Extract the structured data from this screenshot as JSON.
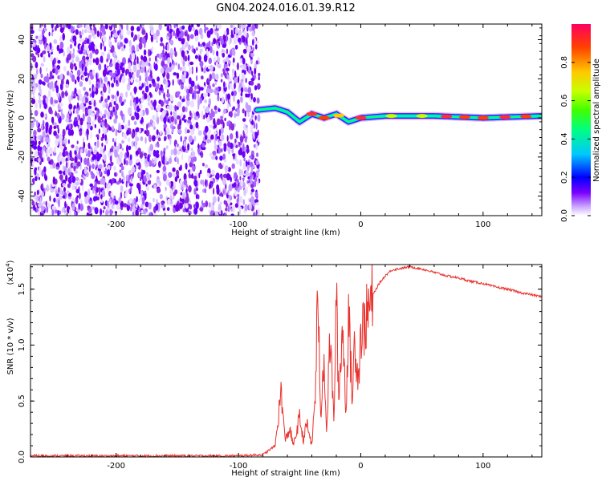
{
  "title": "GN04.2024.016.01.39.R12",
  "chart_data": [
    {
      "type": "heatmap",
      "title": "GN04.2024.016.01.39.R12",
      "xlabel": "Height of straight line (km)",
      "ylabel": "Frequency (Hz)",
      "xlim": [
        -270,
        148
      ],
      "ylim": [
        -50,
        48
      ],
      "xticks": [
        -200,
        -100,
        0,
        100
      ],
      "yticks": [
        -40,
        -20,
        0,
        20,
        40
      ],
      "xtick_labels": [
        "-200",
        "-100",
        "0",
        "100"
      ],
      "ytick_labels": [
        "-40",
        "-20",
        "0",
        "20",
        "40"
      ],
      "noise_region_km": [
        -270,
        -83
      ],
      "signal_band": [
        {
          "x": -85,
          "f": 4
        },
        {
          "x": -70,
          "f": 5
        },
        {
          "x": -60,
          "f": 3
        },
        {
          "x": -50,
          "f": -2
        },
        {
          "x": -40,
          "f": 2
        },
        {
          "x": -30,
          "f": 0
        },
        {
          "x": -20,
          "f": 2
        },
        {
          "x": -10,
          "f": -2
        },
        {
          "x": 0,
          "f": 0
        },
        {
          "x": 20,
          "f": 1
        },
        {
          "x": 60,
          "f": 1
        },
        {
          "x": 100,
          "f": 0
        },
        {
          "x": 148,
          "f": 1
        }
      ],
      "colorbar": {
        "label": "Normalized spectral amplitude",
        "range": [
          0,
          1
        ],
        "ticks": [
          0.0,
          0.2,
          0.4,
          0.6,
          0.8
        ],
        "tick_labels": [
          "0.0",
          "0.2",
          "0.4",
          "0.6",
          "0.8"
        ],
        "colors": [
          "#ffffff",
          "#c8a0ff",
          "#7a00ff",
          "#0000ff",
          "#00c8ff",
          "#00ff80",
          "#40ff00",
          "#c8ff00",
          "#ffc800",
          "#ff4000",
          "#ff0060"
        ]
      }
    },
    {
      "type": "line",
      "xlabel": "Height of straight line (km)",
      "ylabel": "SNR (10 * v/v)",
      "y_multiplier": "(x10",
      "y_multiplier_exp": "4",
      "y_multiplier_close": ")",
      "xlim": [
        -270,
        148
      ],
      "ylim": [
        0,
        1.72
      ],
      "xticks": [
        -200,
        -100,
        0,
        100
      ],
      "yticks": [
        0.0,
        0.5,
        1.0,
        1.5
      ],
      "xtick_labels": [
        "-200",
        "-100",
        "0",
        "100"
      ],
      "ytick_labels": [
        "0.0",
        "0.5",
        "1.0",
        "1.5"
      ],
      "series": [
        {
          "name": "SNR",
          "color": "#e8322d",
          "x": [
            -270,
            -200,
            -150,
            -100,
            -80,
            -70,
            -65,
            -62,
            -58,
            -55,
            -50,
            -47,
            -44,
            -40,
            -37,
            -35,
            -33,
            -30,
            -28,
            -25,
            -22,
            -20,
            -18,
            -15,
            -12,
            -10,
            -7,
            -5,
            -2,
            0,
            5,
            10,
            15,
            20,
            25,
            30,
            35,
            40,
            45,
            50,
            60,
            70,
            80,
            90,
            100,
            110,
            120,
            130,
            140,
            148
          ],
          "values": [
            0.01,
            0.01,
            0.01,
            0.01,
            0.02,
            0.1,
            0.6,
            0.15,
            0.25,
            0.1,
            0.35,
            0.15,
            0.3,
            0.1,
            0.6,
            1.6,
            0.3,
            0.95,
            0.2,
            1.1,
            0.3,
            1.45,
            0.5,
            1.2,
            0.4,
            1.3,
            0.5,
            1.05,
            0.7,
            1.1,
            1.25,
            1.45,
            1.55,
            1.62,
            1.67,
            1.68,
            1.69,
            1.7,
            1.69,
            1.68,
            1.65,
            1.62,
            1.6,
            1.57,
            1.55,
            1.52,
            1.5,
            1.47,
            1.45,
            1.43
          ]
        }
      ]
    }
  ]
}
